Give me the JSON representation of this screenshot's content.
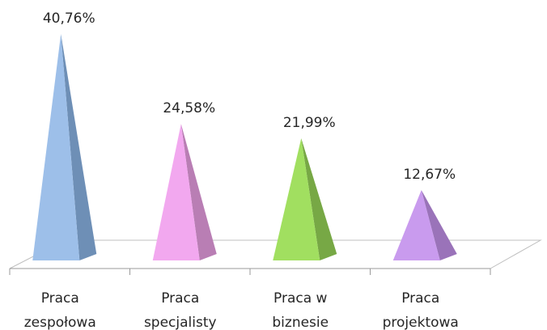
{
  "chart_data": {
    "type": "bar",
    "style": "3d-pyramid",
    "categories": [
      "Praca zespołowa",
      "Praca specjalisty",
      "Praca w biznesie",
      "Praca projektowa"
    ],
    "category_lines": [
      [
        "Praca",
        "zespołowa"
      ],
      [
        "Praca",
        "specjalisty"
      ],
      [
        "Praca w",
        "biznesie"
      ],
      [
        "Praca",
        "projektowa"
      ]
    ],
    "values": [
      40.76,
      24.58,
      21.99,
      12.67
    ],
    "data_labels": [
      "40,76%",
      "24,58%",
      "21,99%",
      "12,67%"
    ],
    "colors": [
      {
        "light": "#9dbfe9",
        "dark": "#6e8fb6"
      },
      {
        "light": "#f2a8ef",
        "dark": "#b97eb4"
      },
      {
        "light": "#a1df60",
        "dark": "#77a845"
      },
      {
        "light": "#c99bee",
        "dark": "#9a73b9"
      }
    ],
    "ylim": [
      0,
      40.76
    ],
    "grid": false,
    "legend": "none",
    "title": "",
    "xlabel": "",
    "ylabel": ""
  }
}
